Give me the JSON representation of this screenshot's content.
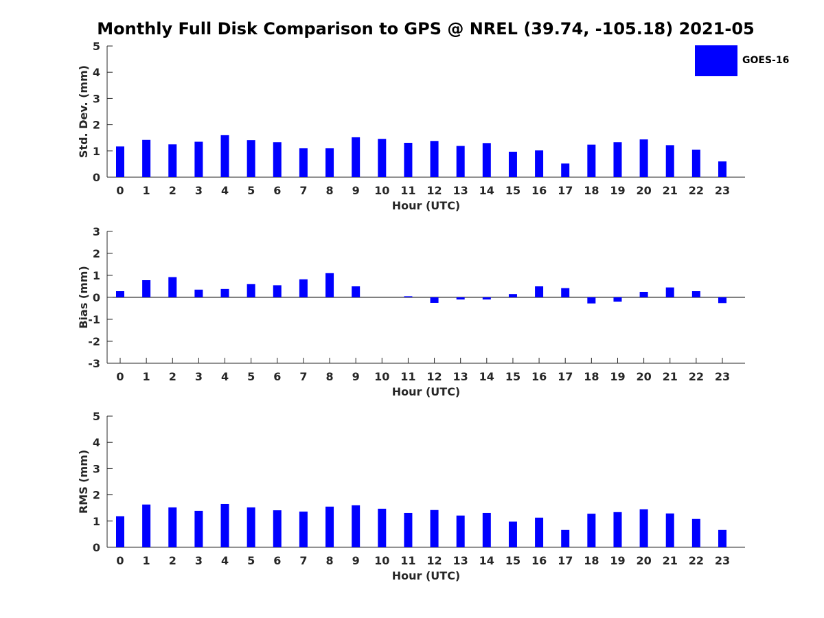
{
  "title": "Monthly Full Disk Comparison to GPS @ NREL (39.74, -105.18) 2021-05",
  "legend": {
    "label": "GOES-16",
    "color": "#0000ff"
  },
  "chart_data": [
    {
      "type": "bar",
      "categories": [
        "0",
        "1",
        "2",
        "3",
        "4",
        "5",
        "6",
        "7",
        "8",
        "9",
        "10",
        "11",
        "12",
        "13",
        "14",
        "15",
        "16",
        "17",
        "18",
        "19",
        "20",
        "21",
        "22",
        "23"
      ],
      "series": [
        {
          "name": "GOES-16",
          "values": [
            1.17,
            1.42,
            1.25,
            1.35,
            1.6,
            1.41,
            1.33,
            1.1,
            1.1,
            1.52,
            1.46,
            1.31,
            1.38,
            1.19,
            1.3,
            0.97,
            1.02,
            0.52,
            1.24,
            1.33,
            1.44,
            1.22,
            1.05,
            0.6
          ]
        }
      ],
      "xlabel": "Hour (UTC)",
      "ylabel": "Std. Dev. (mm)",
      "ylim": [
        0,
        5
      ],
      "yticks": [
        0,
        1,
        2,
        3,
        4,
        5
      ],
      "grid": false
    },
    {
      "type": "bar",
      "categories": [
        "0",
        "1",
        "2",
        "3",
        "4",
        "5",
        "6",
        "7",
        "8",
        "9",
        "10",
        "11",
        "12",
        "13",
        "14",
        "15",
        "16",
        "17",
        "18",
        "19",
        "20",
        "21",
        "22",
        "23"
      ],
      "series": [
        {
          "name": "GOES-16",
          "values": [
            0.28,
            0.78,
            0.92,
            0.35,
            0.38,
            0.6,
            0.55,
            0.82,
            1.1,
            0.5,
            0.0,
            0.05,
            -0.25,
            -0.1,
            -0.1,
            0.15,
            0.5,
            0.42,
            -0.28,
            -0.2,
            0.25,
            0.45,
            0.28,
            -0.26
          ]
        }
      ],
      "xlabel": "Hour (UTC)",
      "ylabel": "Bias (mm)",
      "ylim": [
        -3,
        3
      ],
      "yticks": [
        -3,
        -2,
        -1,
        0,
        1,
        2,
        3
      ],
      "grid": false,
      "zero_line": true
    },
    {
      "type": "bar",
      "categories": [
        "0",
        "1",
        "2",
        "3",
        "4",
        "5",
        "6",
        "7",
        "8",
        "9",
        "10",
        "11",
        "12",
        "13",
        "14",
        "15",
        "16",
        "17",
        "18",
        "19",
        "20",
        "21",
        "22",
        "23"
      ],
      "series": [
        {
          "name": "GOES-16",
          "values": [
            1.18,
            1.63,
            1.52,
            1.39,
            1.65,
            1.52,
            1.41,
            1.36,
            1.55,
            1.6,
            1.47,
            1.31,
            1.42,
            1.21,
            1.31,
            0.98,
            1.13,
            0.66,
            1.28,
            1.34,
            1.45,
            1.29,
            1.08,
            0.66
          ]
        }
      ],
      "xlabel": "Hour (UTC)",
      "ylabel": "RMS (mm)",
      "ylim": [
        0,
        5
      ],
      "yticks": [
        0,
        1,
        2,
        3,
        4,
        5
      ],
      "grid": false
    }
  ]
}
